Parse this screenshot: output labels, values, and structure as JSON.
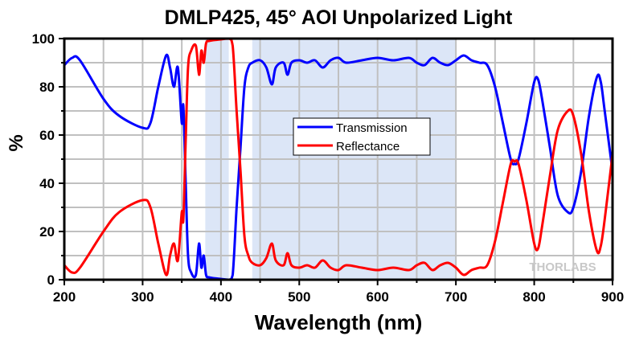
{
  "chart_data": {
    "type": "line",
    "title": "DMLP425, 45° AOI Unpolarized Light",
    "xlabel": "Wavelength (nm)",
    "ylabel": "%",
    "xlim": [
      200,
      900
    ],
    "ylim": [
      0,
      100
    ],
    "xticks": [
      200,
      300,
      400,
      500,
      600,
      700,
      800,
      900
    ],
    "yticks": [
      0,
      20,
      40,
      60,
      80,
      100
    ],
    "grid": true,
    "legend_position": "center",
    "watermark": "THORLABS",
    "shaded_regions": [
      [
        380,
        410
      ],
      [
        440,
        700
      ]
    ],
    "colors": {
      "transmission": "#0000ff",
      "reflectance": "#ff0000",
      "shade": "#dce6f7",
      "grid": "#c0c0c0"
    },
    "x": [
      200,
      210,
      220,
      250,
      270,
      300,
      310,
      320,
      330,
      335,
      340,
      345,
      350,
      352,
      355,
      358,
      362,
      368,
      372,
      375,
      378,
      381,
      385,
      395,
      410,
      415,
      420,
      425,
      430,
      435,
      440,
      450,
      458,
      465,
      470,
      480,
      485,
      490,
      500,
      510,
      520,
      530,
      540,
      550,
      560,
      580,
      600,
      620,
      640,
      650,
      660,
      670,
      680,
      690,
      700,
      710,
      720,
      730,
      740,
      750,
      760,
      770,
      775,
      780,
      790,
      800,
      805,
      810,
      820,
      830,
      843,
      850,
      860,
      870,
      880,
      885,
      890,
      900
    ],
    "series": [
      {
        "name": "Transmission",
        "values": [
          89,
          92,
          91,
          75,
          68,
          63,
          65,
          80,
          93,
          88,
          80,
          88,
          65,
          72,
          40,
          10,
          3,
          2,
          15,
          5,
          10,
          2,
          1,
          0.5,
          0,
          2,
          30,
          55,
          80,
          88,
          90,
          91,
          88,
          81,
          88,
          90,
          85,
          90,
          91,
          90,
          91,
          88,
          91,
          92,
          90,
          91,
          92,
          91,
          92,
          90,
          89,
          92,
          90,
          89,
          91,
          93,
          91,
          90,
          89,
          80,
          65,
          50,
          48,
          50,
          65,
          82,
          83,
          75,
          55,
          35,
          28,
          30,
          45,
          68,
          84,
          82,
          70,
          45
        ]
      },
      {
        "name": "Reflectance",
        "values": [
          6,
          3,
          5,
          20,
          28,
          33,
          30,
          15,
          2,
          10,
          15,
          8,
          28,
          25,
          58,
          88,
          95,
          97,
          85,
          95,
          90,
          98,
          99,
          99.5,
          100,
          97,
          70,
          45,
          18,
          10,
          7,
          6,
          9,
          15,
          8,
          6,
          11,
          6,
          5,
          6,
          5,
          8,
          5,
          4,
          6,
          5,
          4,
          5,
          4,
          6,
          7,
          4,
          6,
          7,
          5,
          2,
          4,
          5,
          6,
          16,
          32,
          48,
          49,
          48,
          33,
          15,
          13,
          22,
          43,
          62,
          70,
          68,
          52,
          28,
          12,
          14,
          25,
          52
        ]
      }
    ]
  }
}
